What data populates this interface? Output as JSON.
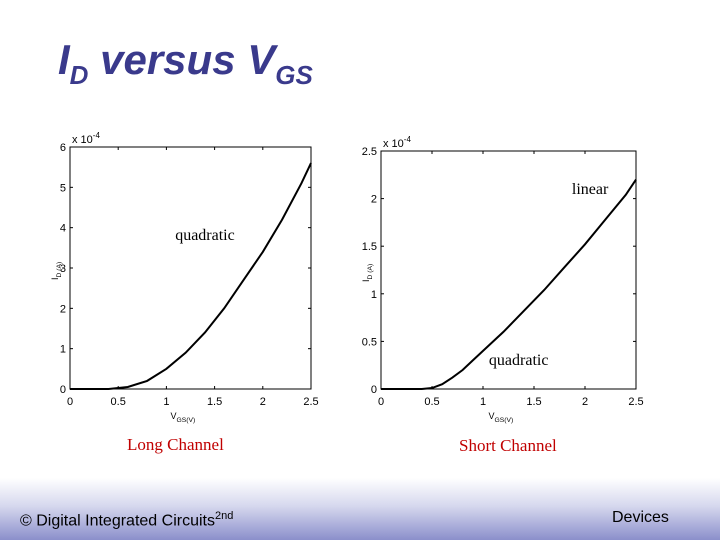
{
  "slide": {
    "title_main": "I",
    "title_sub1": "D",
    "title_mid": " versus V",
    "title_sub2": "GS",
    "footer_left": "© Digital Integrated Circuits",
    "footer_left_sup": "2nd",
    "footer_right": "Devices",
    "text_color": "#3a3a8c",
    "caption_color": "#c00000"
  },
  "chart_data": [
    {
      "type": "line",
      "caption": "Long Channel",
      "xlabel": "V_GS(V)",
      "ylabel": "I_D (A)",
      "exponent_label": "x 10",
      "exponent_power": "-4",
      "xlim": [
        0,
        2.5
      ],
      "ylim": [
        0,
        6
      ],
      "xticks": [
        0,
        0.5,
        1,
        1.5,
        2,
        2.5
      ],
      "xtick_labels": [
        "0",
        "0.5",
        "1",
        "1.5",
        "2",
        "2.5"
      ],
      "yticks": [
        0,
        1,
        2,
        3,
        4,
        5,
        6
      ],
      "ytick_labels": [
        "0",
        "1",
        "2",
        "3",
        "4",
        "5",
        "6"
      ],
      "annotations": [
        {
          "text": "quadratic",
          "x": 1.4,
          "y": 3.7
        }
      ],
      "series": [
        {
          "x": [
            0,
            0.4,
            0.6,
            0.8,
            1.0,
            1.2,
            1.4,
            1.6,
            1.8,
            2.0,
            2.2,
            2.4,
            2.5
          ],
          "y": [
            0,
            0,
            0.05,
            0.2,
            0.5,
            0.9,
            1.4,
            2.0,
            2.7,
            3.4,
            4.2,
            5.1,
            5.6
          ]
        }
      ]
    },
    {
      "type": "line",
      "caption": "Short Channel",
      "xlabel": "V_GS(V)",
      "ylabel": "I_D (A)",
      "exponent_label": "x 10",
      "exponent_power": "-4",
      "xlim": [
        0,
        2.5
      ],
      "ylim": [
        0,
        2.5
      ],
      "xticks": [
        0,
        0.5,
        1,
        1.5,
        2,
        2.5
      ],
      "xtick_labels": [
        "0",
        "0.5",
        "1",
        "1.5",
        "2",
        "2.5"
      ],
      "yticks": [
        0,
        0.5,
        1,
        1.5,
        2,
        2.5
      ],
      "ytick_labels": [
        "0",
        "0.5",
        "1",
        "1.5",
        "2",
        "2.5"
      ],
      "annotations": [
        {
          "text": "linear",
          "x": 2.05,
          "y": 2.05
        },
        {
          "text": "quadratic",
          "x": 1.35,
          "y": 0.25
        }
      ],
      "series": [
        {
          "x": [
            0,
            0.4,
            0.5,
            0.6,
            0.7,
            0.8,
            0.9,
            1.0,
            1.2,
            1.4,
            1.6,
            1.8,
            2.0,
            2.2,
            2.4,
            2.5
          ],
          "y": [
            0,
            0,
            0.01,
            0.05,
            0.12,
            0.2,
            0.3,
            0.4,
            0.6,
            0.82,
            1.04,
            1.28,
            1.52,
            1.78,
            2.04,
            2.2
          ]
        }
      ]
    }
  ]
}
